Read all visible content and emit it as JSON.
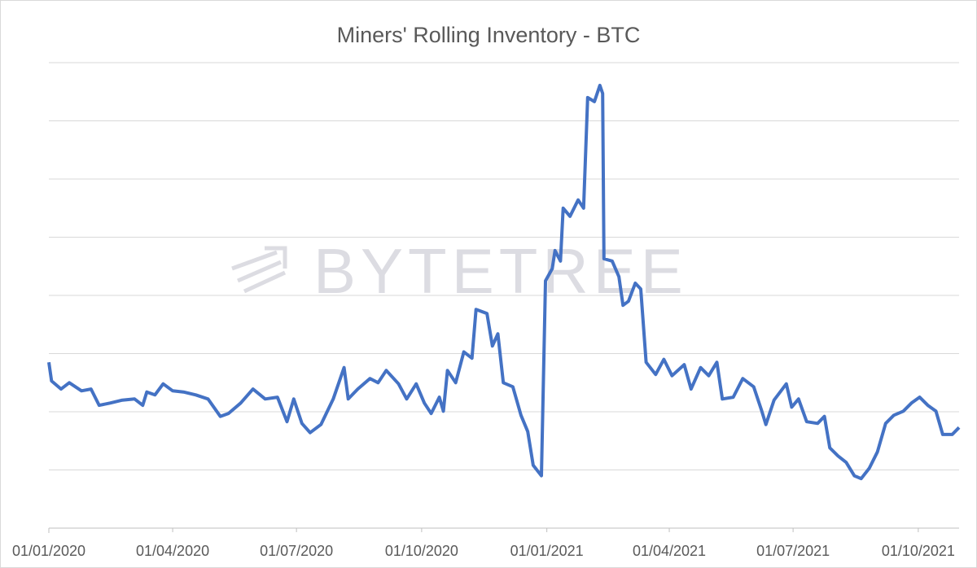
{
  "chart_data": {
    "type": "line",
    "title": "Miners' Rolling Inventory - BTC",
    "watermark": "BYTETREE",
    "x": [
      "2020-01-01",
      "2020-01-03",
      "2020-01-10",
      "2020-01-16",
      "2020-01-25",
      "2020-02-01",
      "2020-02-07",
      "2020-02-15",
      "2020-02-24",
      "2020-03-04",
      "2020-03-10",
      "2020-03-13",
      "2020-03-19",
      "2020-03-25",
      "2020-04-01",
      "2020-04-09",
      "2020-04-18",
      "2020-04-27",
      "2020-05-06",
      "2020-05-12",
      "2020-05-21",
      "2020-05-30",
      "2020-06-08",
      "2020-06-17",
      "2020-06-24",
      "2020-06-29",
      "2020-07-05",
      "2020-07-11",
      "2020-07-19",
      "2020-07-28",
      "2020-08-05",
      "2020-08-08",
      "2020-08-15",
      "2020-08-24",
      "2020-08-30",
      "2020-09-05",
      "2020-09-14",
      "2020-09-20",
      "2020-09-27",
      "2020-10-03",
      "2020-10-08",
      "2020-10-14",
      "2020-10-17",
      "2020-10-20",
      "2020-10-26",
      "2020-11-01",
      "2020-11-07",
      "2020-11-10",
      "2020-11-18",
      "2020-11-22",
      "2020-11-26",
      "2020-11-30",
      "2020-12-07",
      "2020-12-13",
      "2020-12-18",
      "2020-12-22",
      "2020-12-28",
      "2020-12-31",
      "2021-01-05",
      "2021-01-07",
      "2021-01-11",
      "2021-01-13",
      "2021-01-18",
      "2021-01-24",
      "2021-01-28",
      "2021-01-31",
      "2021-02-05",
      "2021-02-09",
      "2021-02-11",
      "2021-02-12",
      "2021-02-18",
      "2021-02-23",
      "2021-02-26",
      "2021-03-02",
      "2021-03-07",
      "2021-03-11",
      "2021-03-15",
      "2021-03-22",
      "2021-03-28",
      "2021-04-03",
      "2021-04-12",
      "2021-04-17",
      "2021-04-24",
      "2021-04-30",
      "2021-05-06",
      "2021-05-10",
      "2021-05-18",
      "2021-05-25",
      "2021-06-02",
      "2021-06-08",
      "2021-06-11",
      "2021-06-17",
      "2021-06-26",
      "2021-06-30",
      "2021-07-05",
      "2021-07-11",
      "2021-07-19",
      "2021-07-24",
      "2021-07-28",
      "2021-08-03",
      "2021-08-09",
      "2021-08-15",
      "2021-08-20",
      "2021-08-26",
      "2021-09-01",
      "2021-09-07",
      "2021-09-13",
      "2021-09-20",
      "2021-09-26",
      "2021-10-02",
      "2021-10-08",
      "2021-10-14",
      "2021-10-19",
      "2021-10-26",
      "2021-10-31"
    ],
    "series": [
      {
        "color": "#4472c4",
        "values": [
          2.85,
          2.53,
          2.39,
          2.5,
          2.36,
          2.39,
          2.11,
          2.15,
          2.2,
          2.22,
          2.11,
          2.34,
          2.29,
          2.48,
          2.36,
          2.34,
          2.29,
          2.22,
          1.92,
          1.97,
          2.15,
          2.39,
          2.22,
          2.25,
          1.83,
          2.22,
          1.8,
          1.64,
          1.78,
          2.22,
          2.76,
          2.22,
          2.39,
          2.57,
          2.5,
          2.71,
          2.48,
          2.22,
          2.48,
          2.15,
          1.97,
          2.25,
          2.01,
          2.71,
          2.5,
          3.03,
          2.92,
          3.76,
          3.69,
          3.13,
          3.34,
          2.5,
          2.43,
          1.94,
          1.66,
          1.08,
          0.9,
          4.25,
          4.46,
          4.77,
          4.59,
          5.5,
          5.36,
          5.64,
          5.5,
          7.4,
          7.33,
          7.61,
          7.47,
          4.63,
          4.59,
          4.32,
          3.83,
          3.9,
          4.21,
          4.11,
          2.85,
          2.64,
          2.9,
          2.62,
          2.81,
          2.39,
          2.76,
          2.62,
          2.85,
          2.22,
          2.25,
          2.57,
          2.43,
          2.01,
          1.78,
          2.2,
          2.48,
          2.08,
          2.22,
          1.83,
          1.8,
          1.92,
          1.38,
          1.24,
          1.13,
          0.9,
          0.85,
          1.03,
          1.31,
          1.8,
          1.94,
          2.01,
          2.15,
          2.25,
          2.11,
          2.01,
          1.61,
          1.61,
          1.73
        ]
      }
    ],
    "xlim": [
      "2020-01-01",
      "2021-10-31"
    ],
    "xticks": [
      {
        "value": "2020-01-01",
        "label": "01/01/2020"
      },
      {
        "value": "2020-04-01",
        "label": "01/04/2020"
      },
      {
        "value": "2020-07-01",
        "label": "01/07/2020"
      },
      {
        "value": "2020-10-01",
        "label": "01/10/2020"
      },
      {
        "value": "2021-01-01",
        "label": "01/01/2021"
      },
      {
        "value": "2021-04-01",
        "label": "01/04/2021"
      },
      {
        "value": "2021-07-01",
        "label": "01/07/2021"
      },
      {
        "value": "2021-10-01",
        "label": "01/10/2021"
      }
    ],
    "ylim": [
      0,
      8
    ],
    "yticks": [
      0,
      1,
      2,
      3,
      4,
      5,
      6,
      7,
      8
    ],
    "ytick_labels": false,
    "grid": true
  }
}
